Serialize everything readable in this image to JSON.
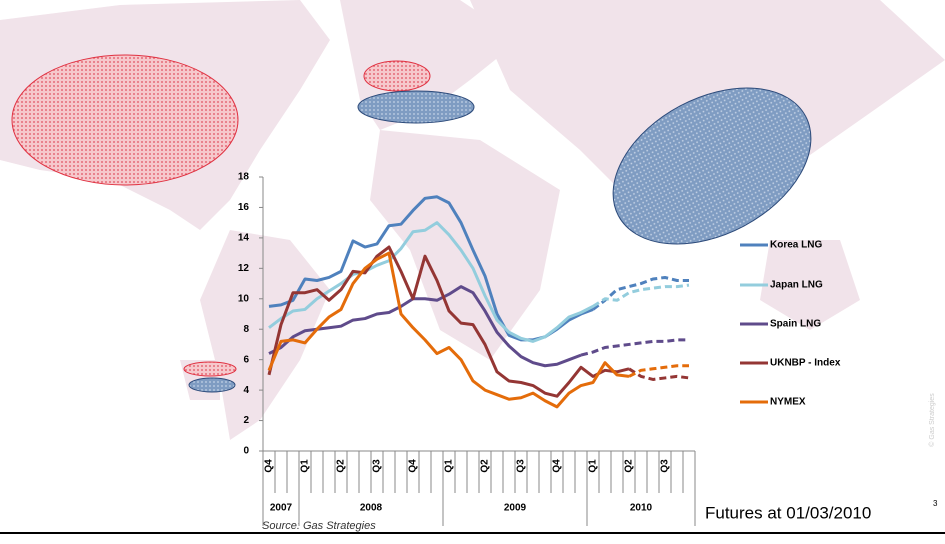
{
  "chart_data": {
    "type": "line",
    "categories": [
      "Q4",
      null,
      null,
      "Q1",
      null,
      null,
      "Q2",
      null,
      null,
      "Q3",
      null,
      null,
      "Q4",
      null,
      null,
      "Q1",
      null,
      null,
      "Q2",
      null,
      null,
      "Q3",
      null,
      null,
      "Q4",
      null,
      null,
      "Q1",
      null,
      null,
      "Q2",
      null,
      null,
      "Q3",
      null,
      null
    ],
    "x_groups": [
      {
        "label": "2007",
        "span": 3
      },
      {
        "label": "2008",
        "span": 12
      },
      {
        "label": "2009",
        "span": 12
      },
      {
        "label": "2010",
        "span": 9
      }
    ],
    "ylim": [
      0,
      18
    ],
    "yticks": [
      0,
      2,
      4,
      6,
      8,
      10,
      12,
      14,
      16,
      18
    ],
    "series": [
      {
        "name": "Korea LNG",
        "color": "#4f81bd",
        "values": [
          9.5,
          9.6,
          9.9,
          11.3,
          11.2,
          11.4,
          11.8,
          13.8,
          13.4,
          13.6,
          14.8,
          14.9,
          15.8,
          16.6,
          16.7,
          16.3,
          15.0,
          13.2,
          11.5,
          9.0,
          7.6,
          7.3,
          7.3,
          7.5,
          8.0,
          8.6,
          9.0,
          9.3,
          null,
          null,
          null,
          null,
          null,
          null,
          null,
          null
        ],
        "futures": [
          null,
          null,
          null,
          null,
          null,
          null,
          null,
          null,
          null,
          null,
          null,
          null,
          null,
          null,
          null,
          null,
          null,
          null,
          null,
          null,
          null,
          null,
          null,
          null,
          null,
          null,
          null,
          9.3,
          9.9,
          10.6,
          10.8,
          11.0,
          11.3,
          11.4,
          11.2,
          11.2
        ]
      },
      {
        "name": "Japan LNG",
        "color": "#93cddd",
        "values": [
          8.1,
          8.7,
          9.2,
          9.3,
          10.0,
          10.5,
          11.0,
          11.6,
          11.8,
          12.2,
          12.5,
          13.3,
          14.4,
          14.5,
          15.0,
          14.2,
          13.2,
          12.0,
          10.2,
          8.6,
          7.8,
          7.4,
          7.2,
          7.5,
          8.1,
          8.8,
          9.1,
          9.5,
          null,
          null,
          null,
          null,
          null,
          null,
          null,
          null
        ],
        "futures": [
          null,
          null,
          null,
          null,
          null,
          null,
          null,
          null,
          null,
          null,
          null,
          null,
          null,
          null,
          null,
          null,
          null,
          null,
          null,
          null,
          null,
          null,
          null,
          null,
          null,
          null,
          null,
          9.5,
          10.0,
          9.9,
          10.4,
          10.6,
          10.7,
          10.8,
          10.8,
          10.9
        ]
      },
      {
        "name": "Spain LNG",
        "color": "#5f4b8b",
        "values": [
          6.4,
          6.8,
          7.5,
          7.9,
          8.0,
          8.1,
          8.2,
          8.6,
          8.7,
          9.0,
          9.1,
          9.5,
          10.0,
          10.0,
          9.9,
          10.3,
          10.8,
          10.4,
          9.2,
          7.8,
          6.9,
          6.2,
          5.8,
          5.6,
          5.7,
          6.0,
          6.3,
          null,
          null,
          null,
          null,
          null,
          null,
          null,
          null,
          null
        ],
        "futures": [
          null,
          null,
          null,
          null,
          null,
          null,
          null,
          null,
          null,
          null,
          null,
          null,
          null,
          null,
          null,
          null,
          null,
          null,
          null,
          null,
          null,
          null,
          null,
          null,
          null,
          null,
          6.3,
          6.5,
          6.8,
          6.9,
          7.0,
          7.1,
          7.2,
          7.2,
          7.3,
          7.3
        ]
      },
      {
        "name": "UKNBP - Index",
        "color": "#943634",
        "values": [
          5.0,
          8.3,
          10.4,
          10.4,
          10.6,
          9.9,
          10.6,
          11.8,
          11.7,
          12.8,
          13.4,
          11.8,
          10.0,
          12.8,
          11.2,
          9.2,
          8.4,
          8.3,
          7.0,
          5.2,
          4.6,
          4.5,
          4.3,
          3.8,
          3.6,
          4.5,
          5.5,
          4.9,
          5.3,
          5.2,
          5.4,
          null,
          null,
          null,
          null,
          null
        ],
        "futures": [
          null,
          null,
          null,
          null,
          null,
          null,
          null,
          null,
          null,
          null,
          null,
          null,
          null,
          null,
          null,
          null,
          null,
          null,
          null,
          null,
          null,
          null,
          null,
          null,
          null,
          null,
          null,
          null,
          null,
          null,
          5.4,
          4.9,
          4.7,
          4.8,
          4.9,
          4.8
        ]
      },
      {
        "name": "NYMEX",
        "color": "#e46c0a",
        "values": [
          5.3,
          7.2,
          7.3,
          7.1,
          8.0,
          8.8,
          9.3,
          11.0,
          12.0,
          12.6,
          13.0,
          9.0,
          8.1,
          7.3,
          6.4,
          6.8,
          6.0,
          4.6,
          4.0,
          3.7,
          3.4,
          3.5,
          3.8,
          3.3,
          2.9,
          3.8,
          4.3,
          4.5,
          5.8,
          5.0,
          4.9,
          null,
          null,
          null,
          null,
          null
        ],
        "futures": [
          null,
          null,
          null,
          null,
          null,
          null,
          null,
          null,
          null,
          null,
          null,
          null,
          null,
          null,
          null,
          null,
          null,
          null,
          null,
          null,
          null,
          null,
          null,
          null,
          null,
          null,
          null,
          null,
          null,
          null,
          4.9,
          5.3,
          5.4,
          5.5,
          5.6,
          5.6
        ]
      }
    ],
    "source": "Source: Gas Strategies",
    "annotation": "Futures at 01/03/2010",
    "page_number": "3",
    "copyright": "© Gas Strategies"
  }
}
